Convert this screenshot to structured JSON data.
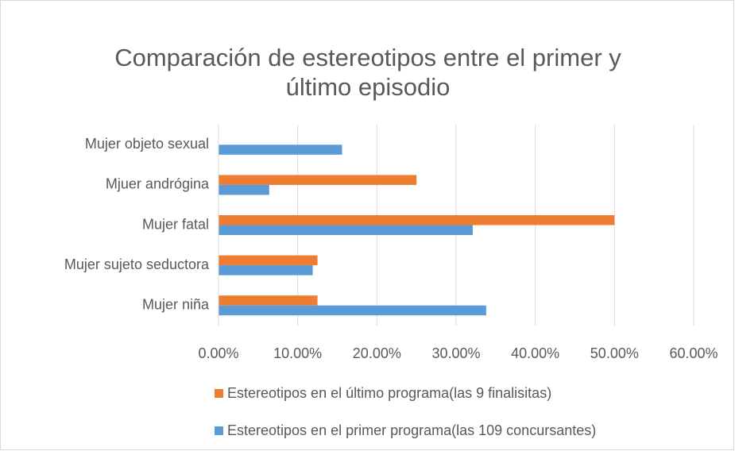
{
  "chart_data": {
    "type": "hbar",
    "title": "Comparación de estereotipos entre el primer y último episodio",
    "categories": [
      "Mujer niña",
      "Mujer sujeto seductora",
      "Mujer fatal",
      "Mjuer andrógina",
      "Mujer objeto sexual"
    ],
    "series": [
      {
        "name": "Estereotipos en el último programa(las 9 finalisitas)",
        "color": "#ed7d31",
        "values": [
          12.5,
          12.5,
          50,
          25,
          0
        ]
      },
      {
        "name": "Estereotipos en el primer programa(las 109 concursantes)",
        "color": "#5b9bd5",
        "values": [
          33.8,
          11.9,
          32.1,
          6.4,
          15.6
        ]
      }
    ],
    "xlim": [
      0,
      60
    ],
    "xticks": [
      {
        "value": 0,
        "label": "0.00%"
      },
      {
        "value": 10,
        "label": "10.00%"
      },
      {
        "value": 20,
        "label": "20.00%"
      },
      {
        "value": 30,
        "label": "30.00%"
      },
      {
        "value": 40,
        "label": "40.00%"
      },
      {
        "value": 50,
        "label": "50.00%"
      },
      {
        "value": 60,
        "label": "60.00%"
      }
    ],
    "grid": true,
    "legend": "bottom"
  }
}
